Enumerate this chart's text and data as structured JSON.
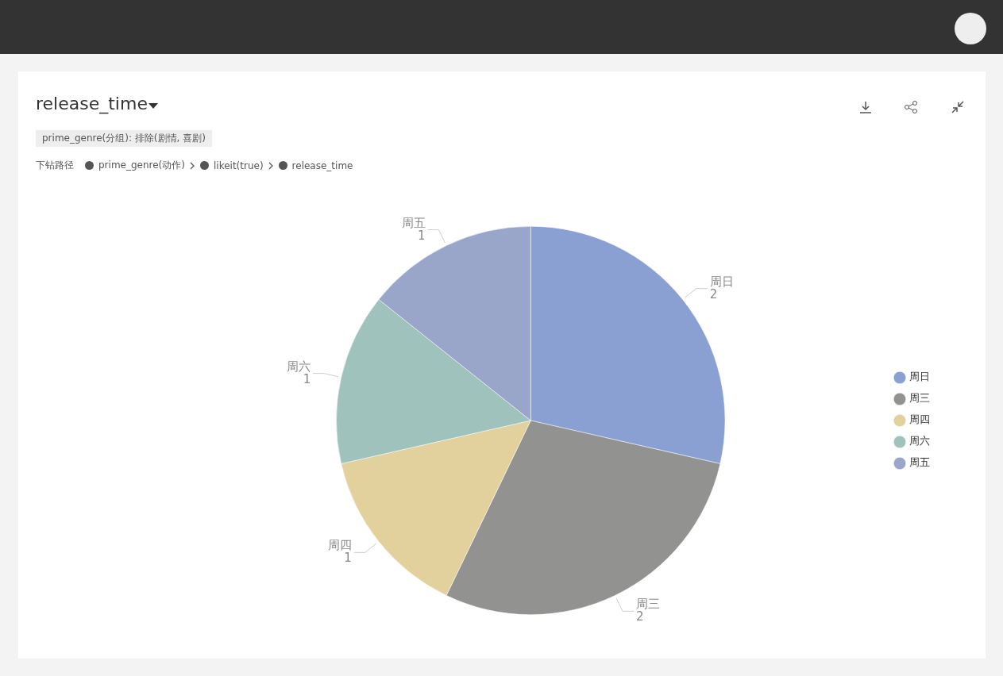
{
  "chart_data": {
    "type": "pie",
    "title": "release_time",
    "categories": [
      "周日",
      "周三",
      "周四",
      "周六",
      "周五"
    ],
    "values": [
      2,
      2,
      1,
      1,
      1
    ],
    "colors": [
      "#8aa0d2",
      "#929290",
      "#e2d09d",
      "#9fc3bc",
      "#9aa6c9"
    ],
    "data_labels": true,
    "legend": "right",
    "annotations": [
      "prime_genre(分组): 排除(剧情, 喜剧)",
      "下钻路径",
      "prime_genre(动作)",
      "likeit(true)",
      "release_time"
    ]
  }
}
